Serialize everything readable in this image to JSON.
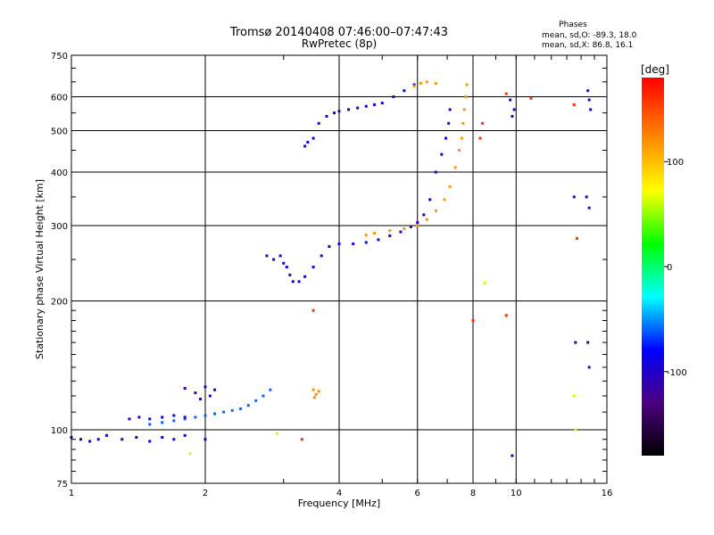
{
  "chart_data": {
    "type": "scatter",
    "title": "Tromsø 20140408 07:46:00–07:47:43",
    "subtitle": "RwPretec (8p)",
    "xlabel": "Frequency [MHz]",
    "ylabel": "Stationary phase Virtual Height [km]",
    "x_scale": "log",
    "y_scale": "log",
    "xlim": [
      1,
      16
    ],
    "ylim": [
      75,
      750
    ],
    "x_ticks": [
      1,
      2,
      4,
      6,
      8,
      10,
      16
    ],
    "y_ticks": [
      75,
      100,
      200,
      300,
      400,
      500,
      600,
      750
    ],
    "grid_x": [
      2,
      4,
      6,
      8,
      10
    ],
    "grid_y": [
      100,
      200,
      300,
      400,
      500,
      600
    ],
    "phases": {
      "title": "Phases",
      "line_o": "mean, sd,O: -89.3, 18.0",
      "line_x": "mean, sd,X:  86.8, 16.1"
    },
    "colorbar": {
      "label": "[deg]",
      "ticks": [
        100,
        0,
        -100
      ],
      "range": [
        -180,
        180
      ]
    },
    "series": [
      {
        "phase_deg": -95,
        "points": [
          [
            3.35,
            460
          ],
          [
            3.4,
            470
          ],
          [
            3.5,
            480
          ],
          [
            3.6,
            520
          ],
          [
            3.75,
            540
          ],
          [
            3.9,
            550
          ],
          [
            4.0,
            555
          ],
          [
            4.2,
            560
          ],
          [
            4.4,
            565
          ],
          [
            4.6,
            570
          ],
          [
            4.8,
            575
          ],
          [
            5.0,
            580
          ],
          [
            5.3,
            600
          ],
          [
            5.6,
            620
          ],
          [
            5.9,
            640
          ]
        ]
      },
      {
        "phase_deg": -100,
        "points": [
          [
            3.05,
            240
          ],
          [
            3.1,
            230
          ],
          [
            3.15,
            222
          ],
          [
            3.25,
            222
          ],
          [
            3.35,
            228
          ],
          [
            3.5,
            240
          ],
          [
            3.65,
            255
          ],
          [
            3.8,
            268
          ],
          [
            4.0,
            272
          ],
          [
            4.3,
            272
          ],
          [
            4.6,
            274
          ],
          [
            4.9,
            278
          ],
          [
            5.2,
            284
          ],
          [
            5.5,
            290
          ],
          [
            5.8,
            298
          ],
          [
            6.0,
            305
          ],
          [
            6.2,
            318
          ],
          [
            6.4,
            345
          ],
          [
            6.6,
            400
          ],
          [
            6.8,
            440
          ],
          [
            6.95,
            480
          ],
          [
            7.05,
            520
          ],
          [
            7.1,
            560
          ]
        ]
      },
      {
        "phase_deg": -100,
        "points": [
          [
            2.75,
            255
          ],
          [
            2.85,
            250
          ],
          [
            2.95,
            255
          ],
          [
            3.0,
            245
          ]
        ]
      },
      {
        "phase_deg": 115,
        "points": [
          [
            4.6,
            285
          ],
          [
            4.8,
            288
          ],
          [
            5.2,
            292
          ],
          [
            5.6,
            295
          ],
          [
            6.0,
            300
          ],
          [
            6.3,
            310
          ],
          [
            6.6,
            325
          ],
          [
            6.9,
            345
          ],
          [
            7.1,
            370
          ],
          [
            7.3,
            410
          ],
          [
            7.45,
            450
          ],
          [
            7.55,
            480
          ],
          [
            7.6,
            520
          ],
          [
            7.65,
            560
          ],
          [
            7.7,
            600
          ],
          [
            7.75,
            640
          ]
        ]
      },
      {
        "phase_deg": 115,
        "points": [
          [
            5.9,
            635
          ],
          [
            6.1,
            645
          ],
          [
            6.3,
            650
          ],
          [
            6.6,
            645
          ]
        ]
      },
      {
        "phase_deg": -60,
        "points": [
          [
            1.5,
            103
          ],
          [
            1.6,
            104
          ],
          [
            1.7,
            105
          ],
          [
            1.8,
            106
          ],
          [
            1.9,
            107
          ],
          [
            2.0,
            108
          ],
          [
            2.1,
            109
          ],
          [
            2.2,
            110
          ],
          [
            2.3,
            111
          ],
          [
            2.4,
            112
          ],
          [
            2.5,
            114
          ],
          [
            2.6,
            117
          ],
          [
            2.7,
            120
          ],
          [
            2.8,
            124
          ]
        ]
      },
      {
        "phase_deg": -100,
        "points": [
          [
            1.35,
            106
          ],
          [
            1.42,
            107
          ],
          [
            1.5,
            106
          ],
          [
            1.6,
            107
          ],
          [
            1.7,
            108
          ],
          [
            1.8,
            107
          ]
        ]
      },
      {
        "phase_deg": -85,
        "points": [
          [
            1.0,
            96
          ],
          [
            1.05,
            95
          ],
          [
            1.1,
            94
          ],
          [
            1.15,
            95
          ],
          [
            1.2,
            97
          ],
          [
            1.3,
            95
          ],
          [
            1.4,
            96
          ],
          [
            1.5,
            94
          ],
          [
            1.6,
            96
          ],
          [
            1.7,
            95
          ],
          [
            1.8,
            97
          ],
          [
            2.0,
            95
          ]
        ]
      },
      {
        "phase_deg": -110,
        "points": [
          [
            1.8,
            125
          ],
          [
            1.9,
            122
          ],
          [
            2.0,
            126
          ],
          [
            2.05,
            120
          ],
          [
            2.1,
            124
          ],
          [
            1.95,
            118
          ]
        ]
      },
      {
        "phase_deg": 120,
        "points": [
          [
            3.5,
            124
          ],
          [
            3.55,
            121
          ],
          [
            3.6,
            123
          ],
          [
            3.52,
            119
          ]
        ]
      },
      {
        "phase_deg": -110,
        "points": [
          [
            14.5,
            620
          ],
          [
            14.6,
            590
          ],
          [
            14.7,
            560
          ],
          [
            14.4,
            350
          ],
          [
            14.6,
            330
          ],
          [
            14.5,
            160
          ],
          [
            14.6,
            140
          ],
          [
            9.8,
            540
          ],
          [
            9.9,
            560
          ],
          [
            9.7,
            590
          ],
          [
            9.8,
            87
          ],
          [
            13.5,
            350
          ],
          [
            13.6,
            160
          ]
        ]
      },
      {
        "phase_deg": 160,
        "points": [
          [
            9.5,
            610
          ],
          [
            10.8,
            595
          ],
          [
            8.3,
            480
          ],
          [
            8.4,
            520
          ],
          [
            8.0,
            180
          ],
          [
            9.5,
            185
          ],
          [
            3.5,
            190
          ],
          [
            3.3,
            95
          ],
          [
            13.5,
            575
          ],
          [
            13.7,
            280
          ]
        ]
      },
      {
        "phase_deg": 60,
        "points": [
          [
            8.5,
            220
          ],
          [
            13.5,
            120
          ],
          [
            13.6,
            100
          ],
          [
            2.9,
            98
          ],
          [
            1.85,
            88
          ]
        ]
      }
    ]
  }
}
